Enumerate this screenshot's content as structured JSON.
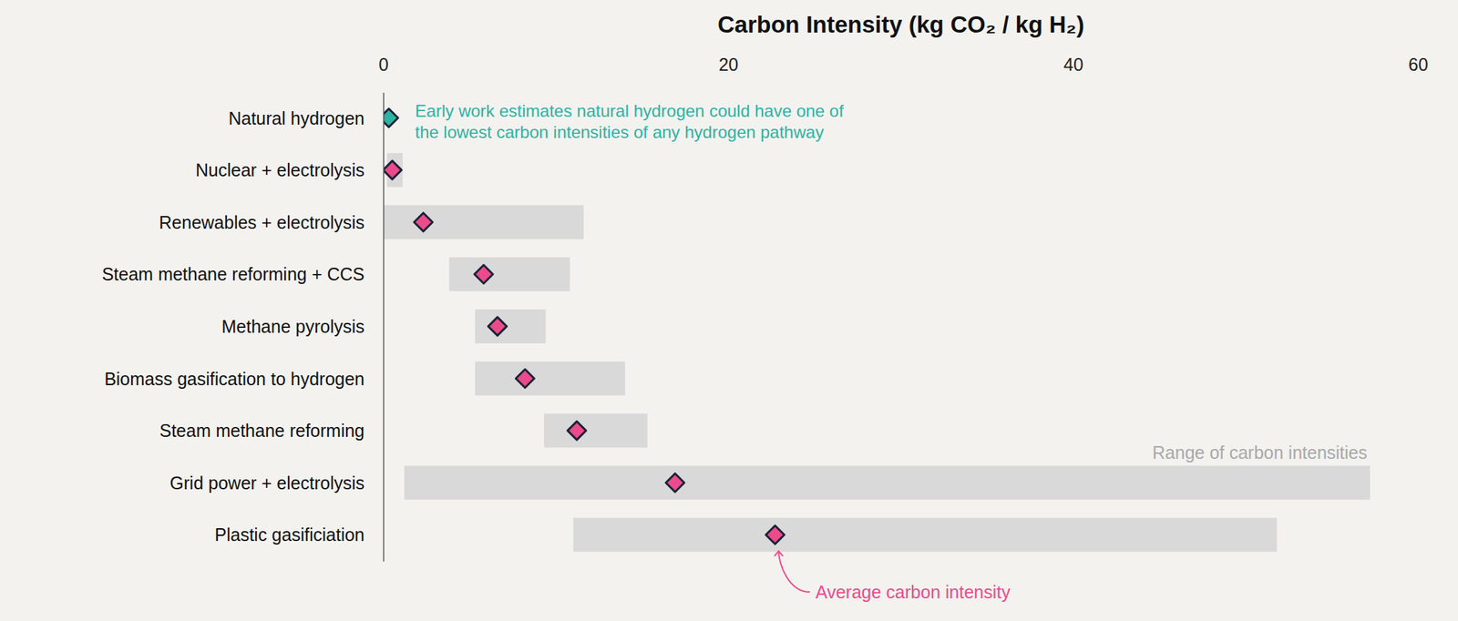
{
  "chart_data": {
    "type": "range_dot",
    "orientation": "horizontal",
    "title": "Carbon Intensity (kg CO₂ / kg H₂)",
    "categories": [
      "Natural hydrogen",
      "Nuclear + electrolysis",
      "Renewables + electrolysis",
      "Steam methane reforming + CCS",
      "Methane pyrolysis",
      "Biomass gasification to hydrogen",
      "Steam methane reforming",
      "Grid power + electrolysis",
      "Plastic gasificiation"
    ],
    "values": [
      0.3,
      0.5,
      2.3,
      5.8,
      6.6,
      8.2,
      11.2,
      16.9,
      22.7
    ],
    "colors": [
      "#2db3a1",
      "#ec4b8b",
      "#ec4b8b",
      "#ec4b8b",
      "#ec4b8b",
      "#ec4b8b",
      "#ec4b8b",
      "#ec4b8b",
      "#ec4b8b"
    ],
    "low": [
      null,
      0.2,
      0.0,
      3.8,
      5.3,
      5.3,
      9.3,
      1.2,
      11.0
    ],
    "high": [
      null,
      1.1,
      11.6,
      10.8,
      9.4,
      14.0,
      15.3,
      57.2,
      51.8
    ],
    "range_color": "#d9d9d9",
    "xlim": [
      0,
      60
    ],
    "xticks": [
      0,
      20,
      40,
      60
    ],
    "grid": false,
    "annotations": [
      {
        "text": [
          "Early work estimates natural hydrogen could have one of",
          "the lowest carbon intensities of any hydrogen pathway"
        ],
        "color": "#2db3a1"
      },
      {
        "text": "Range of carbon intensities",
        "color": "#a9a9a9"
      },
      {
        "text": "Average carbon intensity",
        "color": "#ec4b8b"
      }
    ]
  }
}
